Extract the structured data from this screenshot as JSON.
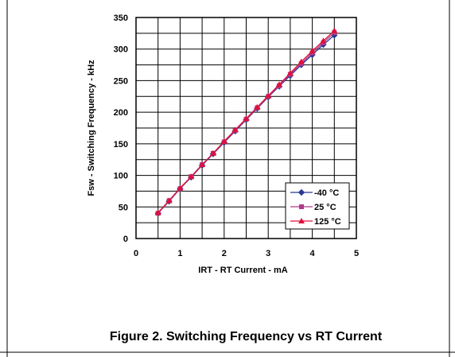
{
  "caption": "Figure 2. Switching Frequency vs RT Current",
  "chart_data": {
    "type": "line",
    "title": "",
    "xlabel": "IRT - RT Current - mA",
    "ylabel": "Fsw - Switching Frequency - kHz",
    "xlim": [
      0,
      5
    ],
    "ylim": [
      0,
      350
    ],
    "x_ticks": [
      0,
      1,
      2,
      3,
      4,
      5
    ],
    "y_ticks": [
      0,
      50,
      100,
      150,
      200,
      250,
      300,
      350
    ],
    "x_tick_labels": [
      "0",
      "1",
      "2",
      "3",
      "4",
      "5"
    ],
    "y_tick_labels": [
      "0",
      "50",
      "100",
      "150",
      "200",
      "250",
      "300",
      "350"
    ],
    "grid": true,
    "legend_position": "bottom-right",
    "series": [
      {
        "name": "-40 °C",
        "marker": "diamond",
        "color": "#2b3a8f",
        "x": [
          0.5,
          0.75,
          1.0,
          1.25,
          1.5,
          1.75,
          2.0,
          2.25,
          2.5,
          2.75,
          3.0,
          3.25,
          3.5,
          3.75,
          4.0,
          4.25,
          4.5
        ],
        "y": [
          40,
          59,
          79,
          97,
          116,
          134,
          152,
          170,
          188,
          206,
          224,
          241,
          258,
          275,
          291,
          307,
          322
        ]
      },
      {
        "name": "25 °C",
        "marker": "square",
        "color": "#b03a8a",
        "x": [
          0.5,
          0.75,
          1.0,
          1.25,
          1.5,
          1.75,
          2.0,
          2.25,
          2.5,
          2.75,
          3.0,
          3.25,
          3.5,
          3.75,
          4.0,
          4.25,
          4.5
        ],
        "y": [
          40,
          60,
          79,
          98,
          117,
          135,
          153,
          171,
          189,
          207,
          225,
          242,
          260,
          277,
          294,
          310,
          326
        ]
      },
      {
        "name": "125 °C",
        "marker": "triangle",
        "color": "#e0103a",
        "x": [
          0.5,
          0.75,
          1.0,
          1.25,
          1.5,
          1.75,
          2.0,
          2.25,
          2.5,
          2.75,
          3.0,
          3.25,
          3.5,
          3.75,
          4.0,
          4.25,
          4.5
        ],
        "y": [
          41,
          60,
          80,
          98,
          117,
          135,
          154,
          172,
          190,
          208,
          226,
          244,
          262,
          280,
          297,
          313,
          329
        ]
      }
    ]
  }
}
